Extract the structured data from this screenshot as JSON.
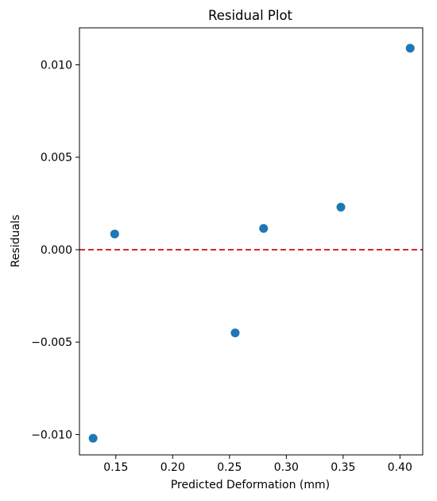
{
  "chart_data": {
    "type": "scatter",
    "title": "Residual Plot",
    "xlabel": "Predicted Deformation (mm)",
    "ylabel": "Residuals",
    "xlim": [
      0.118,
      0.42
    ],
    "ylim": [
      -0.0111,
      0.012
    ],
    "xticks": [
      0.15,
      0.2,
      0.25,
      0.3,
      0.35,
      0.4
    ],
    "xtick_labels": [
      "0.15",
      "0.20",
      "0.25",
      "0.30",
      "0.35",
      "0.40"
    ],
    "yticks": [
      -0.01,
      -0.005,
      0.0,
      0.005,
      0.01
    ],
    "ytick_labels": [
      "−0.010",
      "−0.005",
      "0.000",
      "0.005",
      "0.010"
    ],
    "grid": false,
    "series": [
      {
        "color": "#1f77b4",
        "points": [
          {
            "x": 0.13,
            "y": -0.0102
          },
          {
            "x": 0.149,
            "y": 0.00085
          },
          {
            "x": 0.255,
            "y": -0.0045
          },
          {
            "x": 0.28,
            "y": 0.00115
          },
          {
            "x": 0.348,
            "y": 0.0023
          },
          {
            "x": 0.409,
            "y": 0.0109
          }
        ]
      }
    ],
    "reference_line": {
      "y": 0.0,
      "color": "#d62728",
      "style": "dashed"
    }
  }
}
